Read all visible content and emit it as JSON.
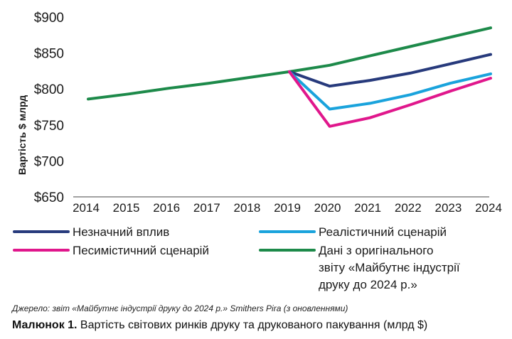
{
  "chart_data": {
    "type": "line",
    "ylabel": "Вартість $ млрд",
    "ylim": [
      650,
      900
    ],
    "yticks": [
      "$900",
      "$850",
      "$800",
      "$750",
      "$700",
      "$650"
    ],
    "ytick_values": [
      900,
      850,
      800,
      750,
      700,
      650
    ],
    "x": [
      "2014",
      "2015",
      "2016",
      "2017",
      "2018",
      "2019",
      "2020",
      "2021",
      "2022",
      "2023",
      "2024"
    ],
    "series": [
      {
        "key": "minor",
        "name": "Незначний вплив",
        "color": "#273a7c",
        "x": [
          "2019",
          "2020",
          "2021",
          "2022",
          "2023",
          "2024"
        ],
        "values": [
          824,
          804,
          812,
          822,
          835,
          848
        ]
      },
      {
        "key": "realistic",
        "name": "Реалістичний сценарій",
        "color": "#1aa3dc",
        "x": [
          "2019",
          "2020",
          "2021",
          "2022",
          "2023",
          "2024"
        ],
        "values": [
          824,
          772,
          780,
          792,
          808,
          821
        ]
      },
      {
        "key": "pessimistic",
        "name": "Песимістичний сценарій",
        "color": "#e0178c",
        "x": [
          "2019",
          "2020",
          "2021",
          "2022",
          "2023",
          "2024"
        ],
        "values": [
          824,
          748,
          760,
          778,
          797,
          815
        ]
      },
      {
        "key": "original",
        "name": "Дані з оригінального звіту «Майбутнє індустрії друку до 2024 р.»",
        "name_lines": [
          "Дані з оригінального",
          "звіту «Майбутнє індустрії",
          "друку до 2024 р.»"
        ],
        "color": "#1d8a4a",
        "x": [
          "2014",
          "2015",
          "2016",
          "2017",
          "2018",
          "2019",
          "2020",
          "2021",
          "2022",
          "2023",
          "2024"
        ],
        "values": [
          786,
          793,
          801,
          808,
          816,
          824,
          833,
          846,
          859,
          872,
          885
        ]
      }
    ],
    "legend_position": "bottom",
    "grid": false
  },
  "footer": {
    "source": "Джерело: звіт «Майбутнє індустрії друку до 2024 р.» Smithers Pira (з оновленнями)",
    "caption_label": "Малюнок 1.",
    "caption_text": " Вартість світових ринків друку та друкованого пакування (млрд $)"
  }
}
